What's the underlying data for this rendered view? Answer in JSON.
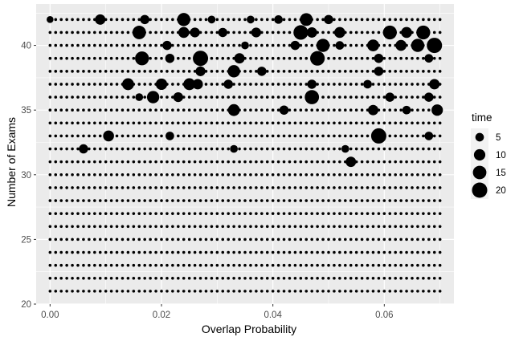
{
  "chart_data": {
    "type": "scatter",
    "xlabel": "Overlap Probability",
    "ylabel": "Number of Exams",
    "xlim": [
      -0.0025,
      0.0725
    ],
    "ylim": [
      20,
      43.2
    ],
    "x_ticks": [
      0.0,
      0.02,
      0.04,
      0.06
    ],
    "x_tick_labels": [
      "0.00",
      "0.02",
      "0.04",
      "0.06"
    ],
    "y_ticks": [
      20,
      25,
      30,
      35,
      40
    ],
    "y_tick_labels": [
      "20",
      "25",
      "30",
      "35",
      "40"
    ],
    "grid": true,
    "background": "#ebebeb",
    "gridline_color": "#ffffff",
    "point_color": "#000000",
    "y_values": [
      21,
      22,
      23,
      24,
      25,
      26,
      27,
      28,
      29,
      30,
      31,
      32,
      33,
      34,
      35,
      36,
      37,
      38,
      39,
      40,
      41,
      42
    ],
    "x_sweep": {
      "start": 0.0,
      "end": 0.07,
      "step": 0.001
    },
    "size_variable": "time",
    "baseline_time": 1,
    "large_points": [
      {
        "x": 0.0,
        "y": 42,
        "time": 3
      },
      {
        "x": 0.009,
        "y": 42,
        "time": 8
      },
      {
        "x": 0.017,
        "y": 42,
        "time": 6
      },
      {
        "x": 0.024,
        "y": 42,
        "time": 14
      },
      {
        "x": 0.029,
        "y": 42,
        "time": 4
      },
      {
        "x": 0.036,
        "y": 42,
        "time": 4
      },
      {
        "x": 0.041,
        "y": 42,
        "time": 5
      },
      {
        "x": 0.046,
        "y": 42,
        "time": 13
      },
      {
        "x": 0.05,
        "y": 42,
        "time": 6
      },
      {
        "x": 0.016,
        "y": 41,
        "time": 15
      },
      {
        "x": 0.024,
        "y": 41,
        "time": 9
      },
      {
        "x": 0.026,
        "y": 41,
        "time": 7
      },
      {
        "x": 0.031,
        "y": 41,
        "time": 6
      },
      {
        "x": 0.037,
        "y": 41,
        "time": 7
      },
      {
        "x": 0.045,
        "y": 41,
        "time": 18
      },
      {
        "x": 0.047,
        "y": 41,
        "time": 8
      },
      {
        "x": 0.052,
        "y": 41,
        "time": 9
      },
      {
        "x": 0.061,
        "y": 41,
        "time": 16
      },
      {
        "x": 0.064,
        "y": 41,
        "time": 9
      },
      {
        "x": 0.067,
        "y": 41,
        "time": 16
      },
      {
        "x": 0.021,
        "y": 40,
        "time": 6
      },
      {
        "x": 0.035,
        "y": 40,
        "time": 4
      },
      {
        "x": 0.044,
        "y": 40,
        "time": 6
      },
      {
        "x": 0.049,
        "y": 40,
        "time": 14
      },
      {
        "x": 0.052,
        "y": 40,
        "time": 5
      },
      {
        "x": 0.058,
        "y": 40,
        "time": 11
      },
      {
        "x": 0.063,
        "y": 40,
        "time": 9
      },
      {
        "x": 0.066,
        "y": 40,
        "time": 14
      },
      {
        "x": 0.069,
        "y": 40,
        "time": 20
      },
      {
        "x": 0.0165,
        "y": 39,
        "time": 16
      },
      {
        "x": 0.0215,
        "y": 39,
        "time": 6
      },
      {
        "x": 0.027,
        "y": 39,
        "time": 20
      },
      {
        "x": 0.034,
        "y": 39,
        "time": 8
      },
      {
        "x": 0.048,
        "y": 39,
        "time": 18
      },
      {
        "x": 0.059,
        "y": 39,
        "time": 6
      },
      {
        "x": 0.068,
        "y": 39,
        "time": 5
      },
      {
        "x": 0.027,
        "y": 38,
        "time": 7
      },
      {
        "x": 0.033,
        "y": 38,
        "time": 12
      },
      {
        "x": 0.038,
        "y": 38,
        "time": 6
      },
      {
        "x": 0.059,
        "y": 38,
        "time": 6
      },
      {
        "x": 0.014,
        "y": 37,
        "time": 11
      },
      {
        "x": 0.02,
        "y": 37,
        "time": 10
      },
      {
        "x": 0.025,
        "y": 37,
        "time": 11
      },
      {
        "x": 0.0265,
        "y": 37,
        "time": 8
      },
      {
        "x": 0.032,
        "y": 37,
        "time": 6
      },
      {
        "x": 0.047,
        "y": 37,
        "time": 6
      },
      {
        "x": 0.057,
        "y": 37,
        "time": 5
      },
      {
        "x": 0.069,
        "y": 37,
        "time": 8
      },
      {
        "x": 0.016,
        "y": 36,
        "time": 4
      },
      {
        "x": 0.0185,
        "y": 36,
        "time": 12
      },
      {
        "x": 0.023,
        "y": 36,
        "time": 7
      },
      {
        "x": 0.047,
        "y": 36,
        "time": 17
      },
      {
        "x": 0.061,
        "y": 36,
        "time": 6
      },
      {
        "x": 0.068,
        "y": 36,
        "time": 6
      },
      {
        "x": 0.033,
        "y": 35,
        "time": 11
      },
      {
        "x": 0.042,
        "y": 35,
        "time": 6
      },
      {
        "x": 0.058,
        "y": 35,
        "time": 8
      },
      {
        "x": 0.064,
        "y": 35,
        "time": 5
      },
      {
        "x": 0.0695,
        "y": 35,
        "time": 10
      },
      {
        "x": 0.0105,
        "y": 33,
        "time": 9
      },
      {
        "x": 0.0215,
        "y": 33,
        "time": 5
      },
      {
        "x": 0.059,
        "y": 33,
        "time": 20
      },
      {
        "x": 0.068,
        "y": 33,
        "time": 5
      },
      {
        "x": 0.006,
        "y": 32,
        "time": 6
      },
      {
        "x": 0.033,
        "y": 32,
        "time": 4
      },
      {
        "x": 0.053,
        "y": 32,
        "time": 4
      },
      {
        "x": 0.054,
        "y": 31,
        "time": 8
      }
    ],
    "legend": {
      "title": "time",
      "placement": "right",
      "entries": [
        {
          "label": "5",
          "time": 5
        },
        {
          "label": "10",
          "time": 10
        },
        {
          "label": "15",
          "time": 15
        },
        {
          "label": "20",
          "time": 20
        }
      ]
    }
  }
}
